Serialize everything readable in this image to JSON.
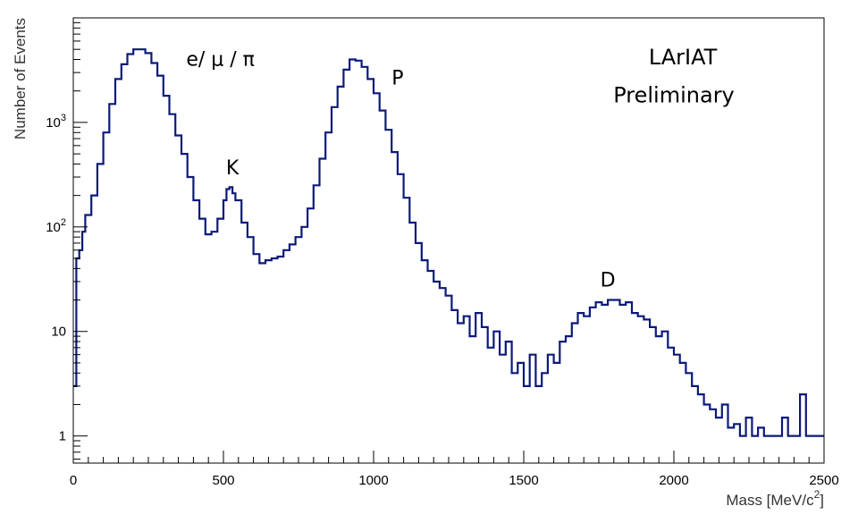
{
  "chart_data": {
    "type": "histogram-step",
    "title": "",
    "xlabel": "Mass [MeV/c",
    "xlabel_sup": "2",
    "xlabel_close": "]",
    "ylabel": "Number of Events",
    "xlim": [
      0,
      2500
    ],
    "ylim": [
      0.55,
      10000
    ],
    "log_y": true,
    "grid": false,
    "line_color": "#0b1a7a",
    "x_ticks": [
      "0",
      "500",
      "1000",
      "1500",
      "2000",
      "2500"
    ],
    "y_ticks": [
      {
        "value": 1,
        "label": "1"
      },
      {
        "value": 10,
        "label": "10"
      },
      {
        "value": 100,
        "label": "10",
        "sup": "2"
      },
      {
        "value": 1000,
        "label": "10",
        "sup": "3"
      }
    ],
    "annotations": [
      {
        "id": "peak-emupi",
        "text": "e/ μ / π",
        "x": 490,
        "y": 3500
      },
      {
        "id": "peak-k",
        "text": "K",
        "x": 530,
        "y": 320
      },
      {
        "id": "peak-p",
        "text": "P",
        "x": 1080,
        "y": 2300
      },
      {
        "id": "peak-d",
        "text": "D",
        "x": 1780,
        "y": 27
      },
      {
        "id": "lariat",
        "text": "LArIAT",
        "x": 2030,
        "y": 3600
      },
      {
        "id": "preliminary",
        "text": "Preliminary",
        "x": 2000,
        "y": 1550
      }
    ],
    "series": [
      {
        "values": [
          [
            0,
            3
          ],
          [
            10,
            50
          ],
          [
            20,
            60
          ],
          [
            30,
            90
          ],
          [
            40,
            130
          ],
          [
            60,
            200
          ],
          [
            80,
            400
          ],
          [
            100,
            800
          ],
          [
            120,
            1500
          ],
          [
            140,
            2600
          ],
          [
            160,
            3600
          ],
          [
            180,
            4500
          ],
          [
            200,
            5000
          ],
          [
            220,
            5000
          ],
          [
            240,
            4600
          ],
          [
            260,
            3700
          ],
          [
            280,
            2800
          ],
          [
            300,
            1800
          ],
          [
            320,
            1200
          ],
          [
            340,
            750
          ],
          [
            360,
            500
          ],
          [
            380,
            300
          ],
          [
            400,
            180
          ],
          [
            420,
            120
          ],
          [
            440,
            85
          ],
          [
            460,
            90
          ],
          [
            480,
            120
          ],
          [
            500,
            180
          ],
          [
            510,
            230
          ],
          [
            520,
            240
          ],
          [
            530,
            210
          ],
          [
            540,
            180
          ],
          [
            560,
            110
          ],
          [
            580,
            80
          ],
          [
            600,
            55
          ],
          [
            620,
            45
          ],
          [
            640,
            48
          ],
          [
            660,
            50
          ],
          [
            680,
            52
          ],
          [
            700,
            60
          ],
          [
            720,
            68
          ],
          [
            740,
            80
          ],
          [
            760,
            100
          ],
          [
            780,
            150
          ],
          [
            800,
            250
          ],
          [
            820,
            450
          ],
          [
            840,
            800
          ],
          [
            860,
            1400
          ],
          [
            880,
            2200
          ],
          [
            900,
            3200
          ],
          [
            920,
            4000
          ],
          [
            940,
            3900
          ],
          [
            960,
            3400
          ],
          [
            980,
            2600
          ],
          [
            1000,
            1900
          ],
          [
            1020,
            1300
          ],
          [
            1040,
            850
          ],
          [
            1060,
            520
          ],
          [
            1080,
            320
          ],
          [
            1100,
            190
          ],
          [
            1120,
            110
          ],
          [
            1140,
            70
          ],
          [
            1160,
            48
          ],
          [
            1180,
            38
          ],
          [
            1200,
            30
          ],
          [
            1220,
            26
          ],
          [
            1240,
            22
          ],
          [
            1260,
            16
          ],
          [
            1280,
            12
          ],
          [
            1300,
            14
          ],
          [
            1320,
            9
          ],
          [
            1340,
            15
          ],
          [
            1360,
            11
          ],
          [
            1380,
            7
          ],
          [
            1400,
            10
          ],
          [
            1420,
            6
          ],
          [
            1440,
            8
          ],
          [
            1460,
            4
          ],
          [
            1480,
            5
          ],
          [
            1500,
            3
          ],
          [
            1520,
            6
          ],
          [
            1540,
            3
          ],
          [
            1560,
            4
          ],
          [
            1580,
            6
          ],
          [
            1600,
            5
          ],
          [
            1620,
            8
          ],
          [
            1640,
            9
          ],
          [
            1660,
            12
          ],
          [
            1680,
            15
          ],
          [
            1700,
            14
          ],
          [
            1720,
            17
          ],
          [
            1740,
            19
          ],
          [
            1760,
            18
          ],
          [
            1780,
            20
          ],
          [
            1800,
            20
          ],
          [
            1820,
            18
          ],
          [
            1840,
            19
          ],
          [
            1860,
            15
          ],
          [
            1880,
            14
          ],
          [
            1900,
            13
          ],
          [
            1920,
            11
          ],
          [
            1940,
            9
          ],
          [
            1960,
            10
          ],
          [
            1980,
            7
          ],
          [
            2000,
            6
          ],
          [
            2020,
            5
          ],
          [
            2040,
            4
          ],
          [
            2060,
            3
          ],
          [
            2080,
            2.5
          ],
          [
            2100,
            2
          ],
          [
            2120,
            1.8
          ],
          [
            2140,
            1.5
          ],
          [
            2160,
            2
          ],
          [
            2180,
            1.2
          ],
          [
            2200,
            1.3
          ],
          [
            2220,
            1
          ],
          [
            2240,
            1.5
          ],
          [
            2260,
            1
          ],
          [
            2280,
            1.2
          ],
          [
            2300,
            1
          ],
          [
            2320,
            1
          ],
          [
            2340,
            1
          ],
          [
            2360,
            1.5
          ],
          [
            2380,
            1
          ],
          [
            2400,
            1
          ],
          [
            2420,
            2.5
          ],
          [
            2440,
            1
          ],
          [
            2460,
            1
          ],
          [
            2480,
            1
          ],
          [
            2500,
            1
          ]
        ]
      }
    ]
  }
}
